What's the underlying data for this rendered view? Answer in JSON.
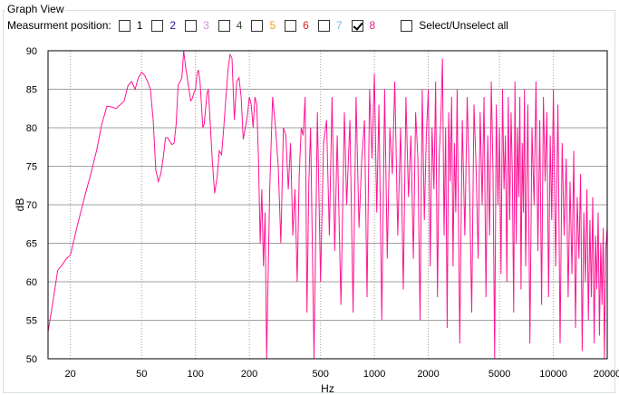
{
  "groupbox": {
    "title": "Graph View"
  },
  "positions": {
    "label": "Measurment position:",
    "items": [
      {
        "label": "1",
        "color": "#000000",
        "checked": false
      },
      {
        "label": "2",
        "color": "#1a1a8c",
        "checked": false
      },
      {
        "label": "3",
        "color": "#d98ad9",
        "checked": false
      },
      {
        "label": "4",
        "color": "#2d4a2d",
        "checked": false
      },
      {
        "label": "5",
        "color": "#e6a020",
        "checked": false
      },
      {
        "label": "6",
        "color": "#e02020",
        "checked": false
      },
      {
        "label": "7",
        "color": "#5fc8e0",
        "checked": false
      },
      {
        "label": "8",
        "color": "#e0208c",
        "checked": true
      }
    ],
    "select_all_label": "Select/Unselect all"
  },
  "chart_data": {
    "type": "line",
    "xlabel": "Hz",
    "ylabel": "dB",
    "xscale": "log",
    "xlim": [
      15,
      20000
    ],
    "ylim": [
      50,
      90
    ],
    "xticks": [
      20,
      50,
      100,
      200,
      500,
      1000,
      2000,
      5000,
      10000,
      20000
    ],
    "xtick_labels": [
      "20",
      "50",
      "100",
      "200",
      "500",
      "1000",
      "2000",
      "5000",
      "10000",
      "20000"
    ],
    "yticks": [
      50,
      55,
      60,
      65,
      70,
      75,
      80,
      85,
      90
    ],
    "grid": true,
    "series": [
      {
        "color": "#ff1493",
        "points": [
          [
            15,
            53.5
          ],
          [
            16,
            57.5
          ],
          [
            17,
            61.5
          ],
          [
            18,
            62.2
          ],
          [
            19,
            63.0
          ],
          [
            20,
            63.5
          ],
          [
            22,
            67.5
          ],
          [
            24,
            71
          ],
          [
            26,
            74
          ],
          [
            28,
            77
          ],
          [
            30,
            80.5
          ],
          [
            32,
            82.8
          ],
          [
            34,
            82.7
          ],
          [
            36,
            82.5
          ],
          [
            38,
            83
          ],
          [
            40,
            83.5
          ],
          [
            42,
            85.5
          ],
          [
            44,
            86
          ],
          [
            46,
            85
          ],
          [
            48,
            86.5
          ],
          [
            50,
            87.2
          ],
          [
            52,
            86.8
          ],
          [
            54,
            86
          ],
          [
            56,
            85
          ],
          [
            58,
            81
          ],
          [
            60,
            74.5
          ],
          [
            62,
            73
          ],
          [
            64,
            74
          ],
          [
            66,
            76
          ],
          [
            68,
            78.7
          ],
          [
            70,
            78.7
          ],
          [
            72,
            78.2
          ],
          [
            74,
            77.8
          ],
          [
            76,
            78
          ],
          [
            78,
            80.5
          ],
          [
            80,
            85.5
          ],
          [
            82,
            86
          ],
          [
            84,
            86.5
          ],
          [
            86,
            90
          ],
          [
            88,
            88
          ],
          [
            90,
            86.5
          ],
          [
            92,
            85
          ],
          [
            94,
            83.5
          ],
          [
            96,
            83.8
          ],
          [
            98,
            84.5
          ],
          [
            100,
            85
          ],
          [
            102,
            87
          ],
          [
            104,
            87.5
          ],
          [
            106,
            86
          ],
          [
            108,
            83
          ],
          [
            110,
            80
          ],
          [
            112,
            80.5
          ],
          [
            114,
            82.5
          ],
          [
            116,
            84.5
          ],
          [
            118,
            85
          ],
          [
            120,
            82
          ],
          [
            124,
            76
          ],
          [
            128,
            71.5
          ],
          [
            132,
            73.5
          ],
          [
            136,
            77
          ],
          [
            140,
            76.5
          ],
          [
            144,
            80
          ],
          [
            148,
            84
          ],
          [
            152,
            87.5
          ],
          [
            156,
            89.5
          ],
          [
            160,
            89
          ],
          [
            165,
            81
          ],
          [
            170,
            86
          ],
          [
            175,
            86.5
          ],
          [
            180,
            84
          ],
          [
            185,
            78.5
          ],
          [
            190,
            80
          ],
          [
            195,
            81.5
          ],
          [
            200,
            84
          ],
          [
            205,
            83
          ],
          [
            210,
            80
          ],
          [
            215,
            84
          ],
          [
            220,
            83
          ],
          [
            225,
            76
          ],
          [
            230,
            65
          ],
          [
            235,
            72
          ],
          [
            240,
            62
          ],
          [
            245,
            69
          ],
          [
            250,
            50
          ],
          [
            260,
            72
          ],
          [
            270,
            84
          ],
          [
            280,
            80
          ],
          [
            290,
            75
          ],
          [
            300,
            65
          ],
          [
            310,
            80
          ],
          [
            320,
            79
          ],
          [
            330,
            72
          ],
          [
            340,
            78
          ],
          [
            350,
            66
          ],
          [
            360,
            72
          ],
          [
            370,
            60
          ],
          [
            380,
            74
          ],
          [
            390,
            80
          ],
          [
            400,
            79
          ],
          [
            410,
            84
          ],
          [
            420,
            56
          ],
          [
            430,
            73
          ],
          [
            440,
            80
          ],
          [
            460,
            50
          ],
          [
            480,
            82
          ],
          [
            500,
            60
          ],
          [
            520,
            78
          ],
          [
            540,
            81
          ],
          [
            560,
            66
          ],
          [
            580,
            84
          ],
          [
            600,
            64
          ],
          [
            620,
            79
          ],
          [
            650,
            57
          ],
          [
            680,
            82
          ],
          [
            700,
            70
          ],
          [
            730,
            81
          ],
          [
            760,
            56
          ],
          [
            790,
            84
          ],
          [
            820,
            67
          ],
          [
            850,
            76
          ],
          [
            880,
            81
          ],
          [
            910,
            58
          ],
          [
            940,
            85
          ],
          [
            970,
            76
          ],
          [
            1000,
            87
          ],
          [
            1030,
            69
          ],
          [
            1060,
            83
          ],
          [
            1100,
            55
          ],
          [
            1140,
            85
          ],
          [
            1180,
            63
          ],
          [
            1220,
            80
          ],
          [
            1260,
            74
          ],
          [
            1300,
            86
          ],
          [
            1350,
            66
          ],
          [
            1400,
            80
          ],
          [
            1450,
            59
          ],
          [
            1500,
            84
          ],
          [
            1550,
            71
          ],
          [
            1600,
            79
          ],
          [
            1650,
            63
          ],
          [
            1700,
            82
          ],
          [
            1750,
            76
          ],
          [
            1800,
            55
          ],
          [
            1850,
            85
          ],
          [
            1900,
            68
          ],
          [
            1950,
            79
          ],
          [
            2000,
            85
          ],
          [
            2050,
            62
          ],
          [
            2100,
            80
          ],
          [
            2150,
            72
          ],
          [
            2200,
            86
          ],
          [
            2250,
            58
          ],
          [
            2300,
            76
          ],
          [
            2350,
            81
          ],
          [
            2400,
            89
          ],
          [
            2450,
            66
          ],
          [
            2500,
            80
          ],
          [
            2550,
            54
          ],
          [
            2600,
            82
          ],
          [
            2650,
            73
          ],
          [
            2700,
            84
          ],
          [
            2750,
            62
          ],
          [
            2800,
            78
          ],
          [
            2850,
            69
          ],
          [
            2900,
            85
          ],
          [
            3000,
            52
          ],
          [
            3100,
            81
          ],
          [
            3200,
            66
          ],
          [
            3300,
            84
          ],
          [
            3400,
            72
          ],
          [
            3500,
            56
          ],
          [
            3600,
            83
          ],
          [
            3700,
            75
          ],
          [
            3800,
            63
          ],
          [
            3900,
            82
          ],
          [
            4000,
            70
          ],
          [
            4100,
            84
          ],
          [
            4200,
            58
          ],
          [
            4300,
            79
          ],
          [
            4400,
            66
          ],
          [
            4500,
            86
          ],
          [
            4600,
            74
          ],
          [
            4700,
            50
          ],
          [
            4800,
            83
          ],
          [
            4900,
            70
          ],
          [
            5000,
            80
          ],
          [
            5100,
            61
          ],
          [
            5200,
            85
          ],
          [
            5300,
            72
          ],
          [
            5400,
            79
          ],
          [
            5500,
            60
          ],
          [
            5600,
            84
          ],
          [
            5700,
            68
          ],
          [
            5800,
            82
          ],
          [
            5900,
            74
          ],
          [
            6000,
            56
          ],
          [
            6100,
            86
          ],
          [
            6200,
            65
          ],
          [
            6300,
            80
          ],
          [
            6400,
            71
          ],
          [
            6500,
            84
          ],
          [
            6600,
            59
          ],
          [
            6700,
            78
          ],
          [
            6800,
            69
          ],
          [
            6900,
            85
          ],
          [
            7000,
            62
          ],
          [
            7200,
            83
          ],
          [
            7400,
            52
          ],
          [
            7600,
            80
          ],
          [
            7800,
            70
          ],
          [
            8000,
            86
          ],
          [
            8200,
            64
          ],
          [
            8400,
            81
          ],
          [
            8600,
            57
          ],
          [
            8800,
            84
          ],
          [
            9000,
            73
          ],
          [
            9200,
            82
          ],
          [
            9400,
            58
          ],
          [
            9600,
            79
          ],
          [
            9800,
            68
          ],
          [
            10000,
            85
          ],
          [
            10300,
            62
          ],
          [
            10600,
            83
          ],
          [
            10900,
            52
          ],
          [
            11200,
            78
          ],
          [
            11500,
            66
          ],
          [
            11800,
            76
          ],
          [
            12100,
            58
          ],
          [
            12400,
            73
          ],
          [
            12700,
            61
          ],
          [
            13000,
            77
          ],
          [
            13300,
            54
          ],
          [
            13600,
            71
          ],
          [
            13900,
            63
          ],
          [
            14200,
            74
          ],
          [
            14500,
            51
          ],
          [
            14800,
            69
          ],
          [
            15100,
            60
          ],
          [
            15400,
            72
          ],
          [
            15700,
            55
          ],
          [
            16000,
            68
          ],
          [
            16300,
            58
          ],
          [
            16600,
            71
          ],
          [
            16900,
            52
          ],
          [
            17200,
            66
          ],
          [
            17500,
            59
          ],
          [
            17800,
            69
          ],
          [
            18100,
            53
          ],
          [
            18400,
            65
          ],
          [
            18700,
            57
          ],
          [
            19000,
            67
          ],
          [
            19300,
            50
          ],
          [
            19600,
            64
          ],
          [
            20000,
            67
          ]
        ]
      }
    ]
  }
}
